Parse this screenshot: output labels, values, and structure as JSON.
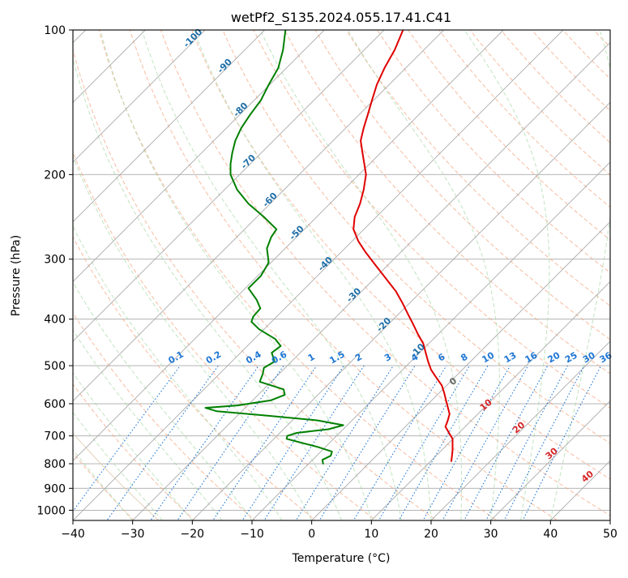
{
  "chart_data": {
    "type": "line",
    "title": "wetPf2_S135.2024.055.17.41.C41",
    "xlabel": "Temperature (°C)",
    "ylabel": "Pressure (hPa)",
    "xlim": [
      -40,
      50
    ],
    "ylim": [
      1050,
      100
    ],
    "y_scale": "log",
    "grid": true,
    "x_ticks": [
      -40,
      -30,
      -20,
      -10,
      0,
      10,
      20,
      30,
      40,
      50
    ],
    "y_ticks": [
      100,
      200,
      300,
      400,
      500,
      600,
      700,
      800,
      900,
      1000
    ],
    "x_tick_labels": [
      "−40",
      "−30",
      "−20",
      "−10",
      "0",
      "10",
      "20",
      "30",
      "40",
      "50"
    ],
    "y_tick_labels": [
      "100",
      "200",
      "300",
      "400",
      "500",
      "600",
      "700",
      "800",
      "900",
      "1000"
    ],
    "colors": {
      "temperature": "#e00000",
      "dewpoint": "#008000",
      "isotherm": "#aaaaaa",
      "dry_adiabat": "#f4a582",
      "moist_adiabat": "#a6d9a6",
      "mixing_ratio": "#1f77d4",
      "reference": "#dcc8a8",
      "isotherm_label": "#1f6fa8",
      "adiabat_label": "#d62728",
      "zero_label": "#666666"
    },
    "isotherm_labels": [
      {
        "value": -100,
        "text": "-100",
        "pressure": 105
      },
      {
        "value": -90,
        "text": "-90",
        "pressure": 120
      },
      {
        "value": -80,
        "text": "-80",
        "pressure": 148
      },
      {
        "value": -70,
        "text": "-70",
        "pressure": 190
      },
      {
        "value": -60,
        "text": "-60",
        "pressure": 228
      },
      {
        "value": -50,
        "text": "-50",
        "pressure": 267
      },
      {
        "value": -40,
        "text": "-40",
        "pressure": 310
      },
      {
        "value": -30,
        "text": "-30",
        "pressure": 360
      },
      {
        "value": -20,
        "text": "-20",
        "pressure": 415
      },
      {
        "value": -10,
        "text": "-10",
        "pressure": 470
      }
    ],
    "mixing_ratio_labels": [
      "0.1",
      "0.2",
      "0.4",
      "0.6",
      "1",
      "1.5",
      "2",
      "3",
      "4",
      "6",
      "8",
      "10",
      "13",
      "16",
      "20",
      "25",
      "30",
      "36"
    ],
    "mixing_ratio_label_x": [
      -22.5,
      -16.2,
      -9.5,
      -5.2,
      0.2,
      4.5,
      8.1,
      13,
      17.5,
      22,
      25.8,
      29.8,
      33.5,
      37,
      40.8,
      43.7,
      46.7,
      49.5
    ],
    "adiabat_labels": [
      {
        "text": "0",
        "temp": 24,
        "pressure": 545,
        "color_key": "zero_label"
      },
      {
        "text": "10",
        "temp": 29.5,
        "pressure": 610,
        "color_key": "adiabat_label"
      },
      {
        "text": "20",
        "temp": 35,
        "pressure": 680,
        "color_key": "adiabat_label"
      },
      {
        "text": "30",
        "temp": 40.5,
        "pressure": 770,
        "color_key": "adiabat_label"
      },
      {
        "text": "40",
        "temp": 46.5,
        "pressure": 860,
        "color_key": "adiabat_label"
      }
    ],
    "series": [
      {
        "key": "temperature",
        "pressure": [
          100,
          110,
          120,
          130,
          140,
          150,
          160,
          170,
          180,
          200,
          215,
          230,
          245,
          260,
          275,
          290,
          310,
          330,
          350,
          370,
          390,
          410,
          430,
          450,
          470,
          490,
          510,
          530,
          550,
          570,
          590,
          610,
          630,
          650,
          670,
          690,
          710,
          730,
          750,
          770,
          790
        ],
        "temperature": [
          15.3,
          13.9,
          12.2,
          10.9,
          10.1,
          9.4,
          8.7,
          8.2,
          8.5,
          9.1,
          8.7,
          8.1,
          7.2,
          7.0,
          7.8,
          9.0,
          10.8,
          12.5,
          14.1,
          15.2,
          16.1,
          17.0,
          17.8,
          18.7,
          19.1,
          19.5,
          20.0,
          20.9,
          21.8,
          22.2,
          22.5,
          22.8,
          23.1,
          22.8,
          22.4,
          23.0,
          23.6,
          23.6,
          23.6,
          23.5,
          23.4
        ]
      },
      {
        "key": "dewpoint",
        "pressure": [
          100,
          110,
          120,
          130,
          140,
          150,
          160,
          170,
          180,
          190,
          200,
          215,
          230,
          245,
          260,
          270,
          285,
          305,
          325,
          345,
          365,
          380,
          395,
          405,
          420,
          440,
          455,
          470,
          490,
          505,
          520,
          540,
          560,
          575,
          590,
          605,
          612,
          622,
          635,
          650,
          665,
          678,
          690,
          700,
          710,
          722,
          738,
          755,
          770,
          785,
          800
        ],
        "temperature": [
          -4.4,
          -4.8,
          -5.6,
          -7.2,
          -8.5,
          -10.3,
          -11.8,
          -12.8,
          -13.3,
          -13.6,
          -13.6,
          -12.5,
          -10.6,
          -8.0,
          -5.9,
          -6.8,
          -7.5,
          -7.2,
          -8.5,
          -10.6,
          -9.2,
          -8.6,
          -9.8,
          -10.1,
          -8.8,
          -6.1,
          -5.2,
          -6.7,
          -6.2,
          -8.0,
          -8.2,
          -8.7,
          -4.7,
          -4.5,
          -6.8,
          -12.4,
          -17.8,
          -15.9,
          -7.6,
          1.0,
          5.3,
          2.8,
          -2.5,
          -4.1,
          -4.2,
          -2.0,
          1.0,
          3.4,
          3.2,
          1.8,
          1.9
        ]
      }
    ]
  }
}
